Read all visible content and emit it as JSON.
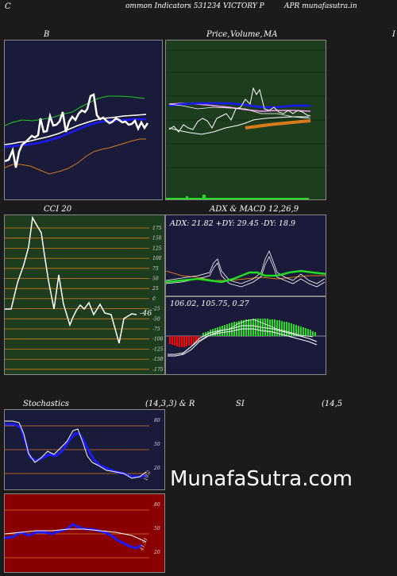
{
  "header": {
    "left": "C",
    "title": "ommon  Indicators 531234  VICTORY P",
    "right": "APR munafasutra.in"
  },
  "titles": {
    "b": "B",
    "price": "Price,",
    "volume": "Volume,",
    "ma": "MA",
    "cut": "I",
    "cci": "CCI 20",
    "adx": "ADX  & MACD 12,26,9",
    "stoch": "Stochastics",
    "stoch_params": "(14,3,3) & R",
    "si": "SI",
    "rsi_params": "(14,5"
  },
  "cci": {
    "ticks": [
      "175",
      "150",
      "125",
      "100",
      "75",
      "50",
      "25",
      "0",
      "-25",
      "-50",
      "-75",
      "-100",
      "-125",
      "-150",
      "-175"
    ],
    "value": "-46"
  },
  "adx": {
    "readout": "ADX: 21.82  +DY: 29.45 -DY: 18.9"
  },
  "macd": {
    "readout": "106.02,  105.75,  0.27"
  },
  "stoch": {
    "ticks": [
      "80",
      "50",
      "20"
    ],
    "value": "19.2"
  },
  "rsi": {
    "ticks": [
      "80",
      "50",
      "20"
    ],
    "value": "41.91"
  },
  "watermark": "MunafaSutra.com",
  "colors": {
    "navy": "#1a1a3a",
    "green_bg": "#1e3d1e",
    "red_bg": "#8a0000",
    "orange": "#d97a1a",
    "blue": "#1a1aff",
    "bright_green": "#22dd22"
  }
}
